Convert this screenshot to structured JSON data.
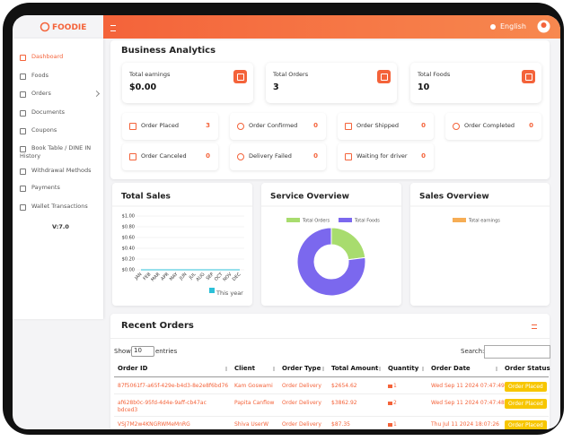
{
  "brand": "FOODIE",
  "header": {
    "language": "English"
  },
  "sidebar": {
    "items": [
      "Dashboard",
      "Foods",
      "Orders",
      "Documents",
      "Coupons",
      "Book Table / DINE IN History",
      "Withdrawal Methods",
      "Payments",
      "Wallet Transactions"
    ],
    "version": "V:7.0"
  },
  "analytics": {
    "title": "Business Analytics",
    "cards": [
      {
        "label": "Total earnings",
        "value": "$0.00"
      },
      {
        "label": "Total Orders",
        "value": "3"
      },
      {
        "label": "Total Foods",
        "value": "10"
      }
    ],
    "statuses": [
      {
        "label": "Order Placed",
        "value": "3"
      },
      {
        "label": "Order Confirmed",
        "value": "0"
      },
      {
        "label": "Order Shipped",
        "value": "0"
      },
      {
        "label": "Order Completed",
        "value": "0"
      },
      {
        "label": "Order Canceled",
        "value": "0"
      },
      {
        "label": "Delivery Failed",
        "value": "0"
      },
      {
        "label": "Waiting for driver",
        "value": "0"
      }
    ]
  },
  "chart_data": [
    {
      "type": "line",
      "title": "Total Sales",
      "categories": [
        "JAN",
        "FEB",
        "MAR",
        "APR",
        "MAY",
        "JUN",
        "JUL",
        "AUG",
        "SEP",
        "OCT",
        "NOV",
        "DEC"
      ],
      "ylim": [
        0,
        1
      ],
      "yticks": [
        {
          "value": 1,
          "label": "$1.00"
        },
        {
          "value": 0.8,
          "label": "$0.80"
        },
        {
          "value": 0.6,
          "label": "$0.60"
        },
        {
          "value": 0.4,
          "label": "$0.40"
        },
        {
          "value": 0.2,
          "label": "$0.20"
        },
        {
          "value": 0,
          "label": "$0.00"
        }
      ],
      "series": [
        {
          "name": "This year",
          "color": "#2cc0d8",
          "values": [
            0,
            0,
            0,
            0,
            0,
            0,
            0,
            0,
            0,
            0,
            0,
            0
          ]
        }
      ]
    },
    {
      "type": "pie",
      "title": "Service Overview",
      "categories": [
        "Total Orders",
        "Total Foods"
      ],
      "values": [
        3,
        10
      ],
      "colors": [
        "#a8dc6e",
        "#7b68ee"
      ]
    },
    {
      "type": "pie",
      "title": "Sales Overview",
      "categories": [
        "Total earnings"
      ],
      "values": [
        0
      ],
      "colors": [
        "#f6ad55"
      ]
    }
  ],
  "orders": {
    "title": "Recent Orders",
    "show": "Show",
    "page_size": "10",
    "entries": "entries",
    "search": "Search:",
    "columns": [
      "Order ID",
      "Client",
      "Order Type",
      "Total Amount",
      "Quantity",
      "Order Date",
      "Order Status"
    ],
    "rows": [
      [
        "87f5061f7-a65f-429e-b4d3-8e2e8f6bd76",
        "Kam Goswami",
        "Order Delivery",
        "$2654.62",
        "1",
        "Wed Sep 11 2024 07:47:49",
        "Order Placed"
      ],
      [
        "af628b0c-95fd-4d4e-9aff-cb47acbdced3",
        "Papita Canflow",
        "Order Delivery",
        "$3862.92",
        "2",
        "Wed Sep 11 2024 07:47:48",
        "Order Placed"
      ],
      [
        "VSJ7M2w4KNGRWMeMnRG",
        "Shiva UserW",
        "Order Delivery",
        "$87.35",
        "1",
        "Thu Jul 11 2024 18:07:26",
        "Order Placed"
      ]
    ]
  }
}
